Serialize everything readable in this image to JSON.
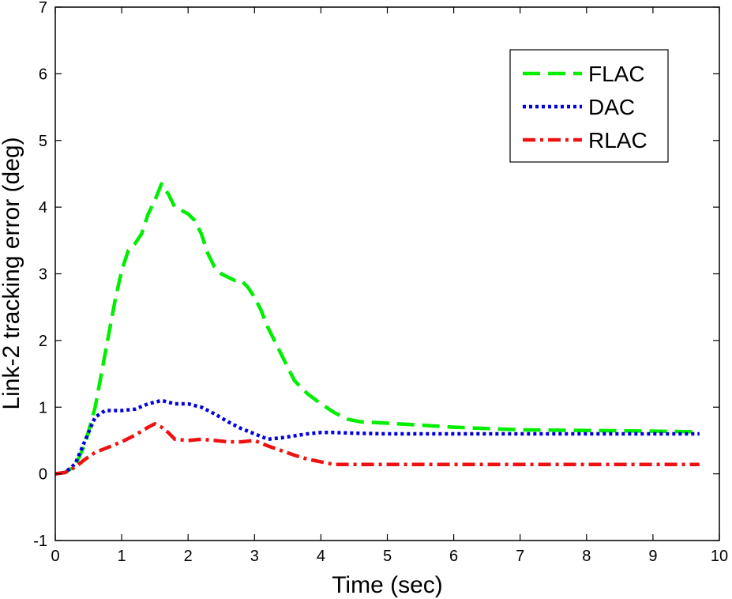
{
  "chart_data": {
    "type": "line",
    "title": "",
    "xlabel": "Time (sec)",
    "ylabel": "Link-2 tracking error (deg)",
    "xlim": [
      0,
      10
    ],
    "ylim": [
      -1,
      7
    ],
    "xticks": [
      "0",
      "1",
      "2",
      "3",
      "4",
      "5",
      "6",
      "7",
      "8",
      "9",
      "10"
    ],
    "yticks": [
      "-1",
      "0",
      "1",
      "2",
      "3",
      "4",
      "5",
      "6",
      "7"
    ],
    "grid": false,
    "legend_position": "top-right",
    "series": [
      {
        "name": "FLAC",
        "color": "#00ee00",
        "style": "dashed",
        "x": [
          0,
          0.15,
          0.3,
          0.45,
          0.6,
          0.75,
          0.9,
          1.0,
          1.1,
          1.2,
          1.3,
          1.4,
          1.5,
          1.6,
          1.7,
          1.8,
          1.9,
          2.0,
          2.1,
          2.2,
          2.3,
          2.4,
          2.5,
          2.6,
          2.7,
          2.8,
          2.9,
          3.0,
          3.1,
          3.2,
          3.3,
          3.4,
          3.5,
          3.6,
          3.8,
          4.0,
          4.2,
          4.4,
          4.6,
          5.0,
          5.5,
          6.0,
          6.5,
          7.0,
          8.0,
          9.0,
          9.7
        ],
        "y": [
          0,
          0.02,
          0.12,
          0.45,
          1.0,
          1.8,
          2.6,
          3.05,
          3.35,
          3.45,
          3.6,
          3.9,
          4.1,
          4.35,
          4.2,
          4.0,
          3.95,
          3.9,
          3.8,
          3.6,
          3.3,
          3.1,
          3.0,
          2.95,
          2.9,
          2.9,
          2.8,
          2.65,
          2.45,
          2.2,
          2.0,
          1.8,
          1.6,
          1.4,
          1.2,
          1.05,
          0.92,
          0.82,
          0.78,
          0.76,
          0.73,
          0.7,
          0.68,
          0.66,
          0.65,
          0.64,
          0.63
        ]
      },
      {
        "name": "DAC",
        "color": "#0000dd",
        "style": "dotted",
        "x": [
          0,
          0.15,
          0.3,
          0.45,
          0.6,
          0.75,
          1.0,
          1.2,
          1.4,
          1.6,
          1.8,
          2.0,
          2.2,
          2.4,
          2.6,
          2.8,
          3.0,
          3.2,
          3.4,
          3.6,
          3.8,
          4.0,
          4.2,
          4.5,
          5.0,
          6.0,
          7.0,
          8.0,
          9.0,
          9.7
        ],
        "y": [
          0,
          0.02,
          0.15,
          0.5,
          0.85,
          0.95,
          0.95,
          0.97,
          1.05,
          1.1,
          1.05,
          1.05,
          1.0,
          0.9,
          0.78,
          0.68,
          0.6,
          0.52,
          0.54,
          0.57,
          0.6,
          0.62,
          0.62,
          0.61,
          0.6,
          0.6,
          0.6,
          0.6,
          0.6,
          0.6
        ]
      },
      {
        "name": "RLAC",
        "color": "#ee1111",
        "style": "dashdot",
        "x": [
          0,
          0.15,
          0.3,
          0.45,
          0.6,
          0.8,
          1.0,
          1.2,
          1.4,
          1.5,
          1.6,
          1.7,
          1.8,
          2.0,
          2.2,
          2.4,
          2.6,
          2.8,
          3.0,
          3.2,
          3.4,
          3.6,
          3.8,
          4.0,
          4.2,
          4.5,
          5.0,
          6.0,
          7.0,
          8.0,
          9.0,
          9.7
        ],
        "y": [
          0,
          0.02,
          0.1,
          0.22,
          0.32,
          0.4,
          0.48,
          0.58,
          0.7,
          0.75,
          0.7,
          0.62,
          0.52,
          0.5,
          0.52,
          0.5,
          0.48,
          0.48,
          0.5,
          0.42,
          0.35,
          0.28,
          0.22,
          0.18,
          0.14,
          0.14,
          0.14,
          0.14,
          0.14,
          0.14,
          0.14,
          0.14
        ]
      }
    ]
  }
}
